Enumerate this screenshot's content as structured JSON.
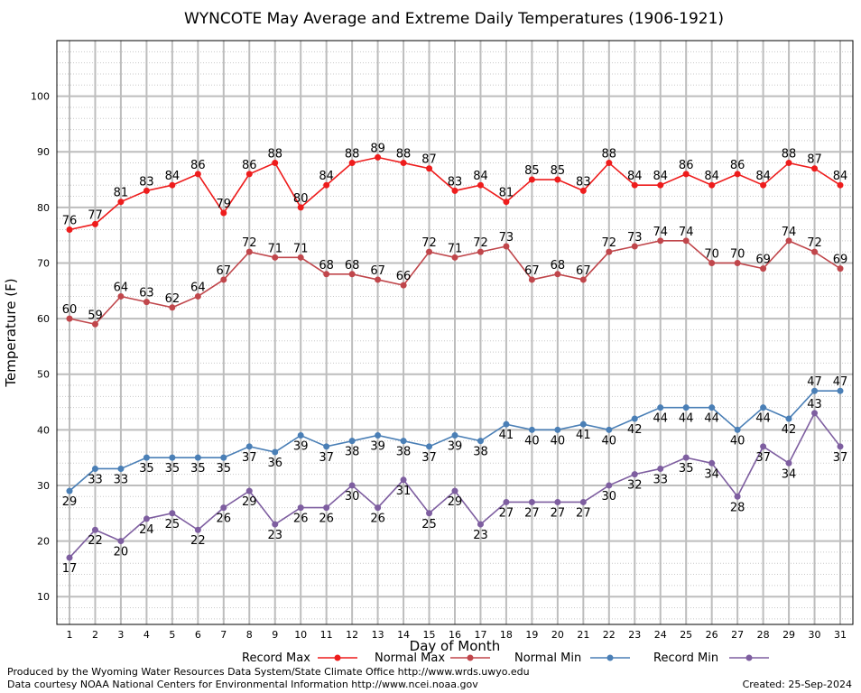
{
  "chart_data": {
    "type": "line",
    "title": "WYNCOTE May Average and Extreme Daily Temperatures (1906-1921)",
    "xlabel": "Day of Month",
    "ylabel": "Temperature (F)",
    "ylim": [
      5,
      110
    ],
    "yticks": [
      10,
      20,
      30,
      40,
      50,
      60,
      70,
      80,
      90,
      100
    ],
    "categories": [
      1,
      2,
      3,
      4,
      5,
      6,
      7,
      8,
      9,
      10,
      11,
      12,
      13,
      14,
      15,
      16,
      17,
      18,
      19,
      20,
      21,
      22,
      23,
      24,
      25,
      26,
      27,
      28,
      29,
      30,
      31
    ],
    "grid": true,
    "legend_position": "bottom",
    "series": [
      {
        "name": "Record Max",
        "color": "#ee1c1c",
        "values": [
          76,
          77,
          81,
          83,
          84,
          86,
          79,
          86,
          88,
          80,
          84,
          88,
          89,
          88,
          87,
          83,
          84,
          81,
          85,
          85,
          83,
          88,
          84,
          84,
          86,
          84,
          86,
          84,
          88,
          87,
          84
        ]
      },
      {
        "name": "Normal Max",
        "color": "#c0464b",
        "values": [
          60,
          59,
          64,
          63,
          62,
          64,
          67,
          72,
          71,
          71,
          68,
          68,
          67,
          66,
          72,
          71,
          72,
          73,
          67,
          68,
          67,
          72,
          73,
          74,
          74,
          70,
          70,
          69,
          74,
          72,
          69
        ]
      },
      {
        "name": "Normal Min",
        "color": "#4a7fb6",
        "values": [
          29,
          33,
          33,
          35,
          35,
          35,
          35,
          37,
          36,
          39,
          37,
          38,
          39,
          38,
          37,
          39,
          38,
          41,
          40,
          40,
          41,
          40,
          42,
          44,
          44,
          44,
          40,
          44,
          42,
          47,
          47
        ]
      },
      {
        "name": "Record Min",
        "color": "#7e5ea0",
        "values": [
          17,
          22,
          20,
          24,
          25,
          22,
          26,
          29,
          23,
          26,
          26,
          30,
          26,
          31,
          25,
          29,
          23,
          27,
          27,
          27,
          27,
          30,
          32,
          33,
          35,
          34,
          28,
          37,
          34,
          43,
          37
        ]
      }
    ]
  },
  "footer": {
    "produced_by": "Produced by the Wyoming Water Resources Data System/State Climate Office http://www.wrds.uwyo.edu",
    "data_courtesy": "Data courtesy NOAA National Centers for Environmental Information http://www.ncei.noaa.gov",
    "created": "Created:  25-Sep-2024"
  }
}
